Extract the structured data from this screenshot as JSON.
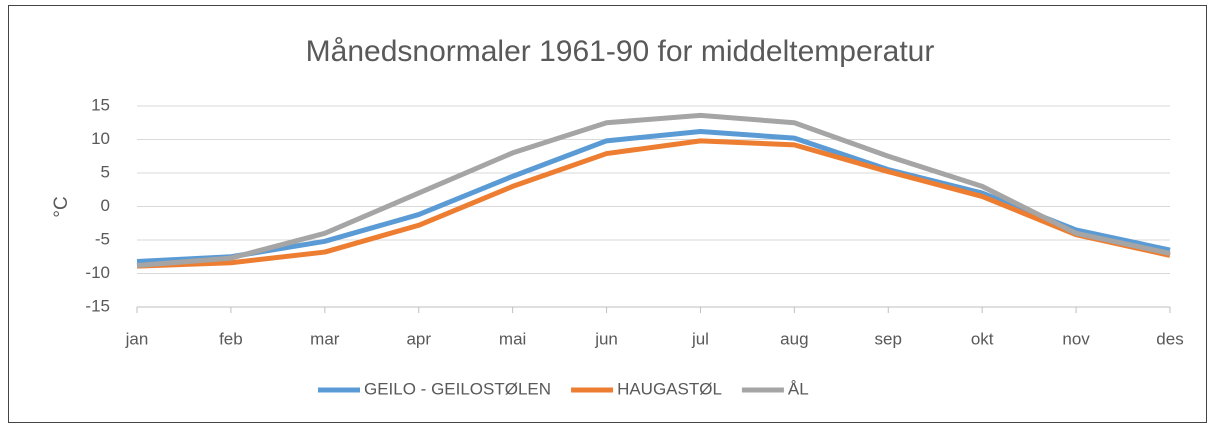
{
  "chart_data": {
    "type": "line",
    "title": "Månedsnormaler 1961-90 for middeltemperatur",
    "y_label": "°C",
    "categories": [
      "jan",
      "feb",
      "mar",
      "apr",
      "mai",
      "jun",
      "jul",
      "aug",
      "sep",
      "okt",
      "nov",
      "des"
    ],
    "series": [
      {
        "name": "GEILO - GEILOSTØLEN",
        "color": "#5b9bd5",
        "values": [
          -8.2,
          -7.5,
          -5.2,
          -1.2,
          4.5,
          9.8,
          11.2,
          10.2,
          5.5,
          2.0,
          -3.5,
          -6.5
        ]
      },
      {
        "name": "HAUGASTØL",
        "color": "#ed7d31",
        "values": [
          -8.9,
          -8.4,
          -6.8,
          -2.8,
          3.0,
          7.9,
          9.8,
          9.2,
          5.2,
          1.5,
          -4.2,
          -7.3
        ]
      },
      {
        "name": "ÅL",
        "color": "#a5a5a5",
        "values": [
          -8.8,
          -7.7,
          -4.0,
          2.0,
          8.0,
          12.5,
          13.6,
          12.5,
          7.5,
          3.0,
          -4.0,
          -7.0
        ]
      }
    ],
    "ylim": [
      -15,
      15
    ],
    "yticks": [
      -15,
      -10,
      -5,
      0,
      5,
      10,
      15
    ],
    "grid": true,
    "legend": "bottom"
  }
}
